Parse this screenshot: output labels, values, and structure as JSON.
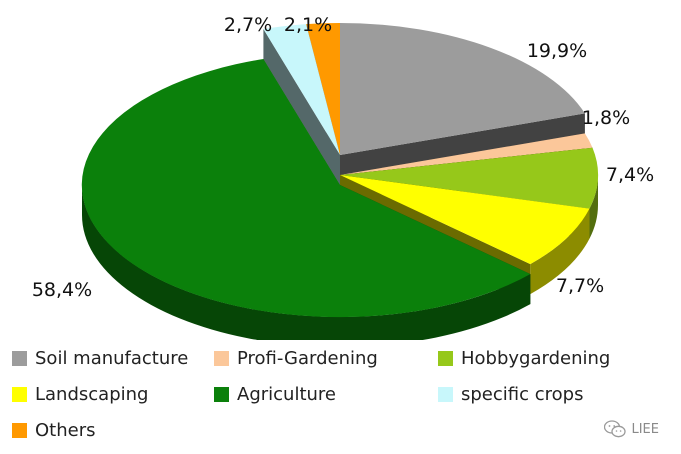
{
  "chart_data": {
    "type": "pie",
    "title": "",
    "series": [
      {
        "name": "Soil manufacture",
        "label": "19,9%",
        "value": 19.9,
        "color": "#9c9c9c"
      },
      {
        "name": "Profi-Gardening",
        "label": "1,8%",
        "value": 1.8,
        "color": "#fbc79a"
      },
      {
        "name": "Hobbygardening",
        "label": "7,4%",
        "value": 7.4,
        "color": "#96c81a"
      },
      {
        "name": "Landscaping",
        "label": "7,7%",
        "value": 7.7,
        "color": "#ffff00"
      },
      {
        "name": "Agriculture",
        "label": "58,4%",
        "value": 58.4,
        "color": "#0b800b"
      },
      {
        "name": "specific crops",
        "label": "2,7%",
        "value": 2.7,
        "color": "#c8f7fb"
      },
      {
        "name": "Others",
        "label": "2,1%",
        "value": 2.1,
        "color": "#ff9900"
      }
    ],
    "legend_position": "bottom",
    "style": "3d-exploded"
  },
  "watermark": {
    "text": "LIEE",
    "icon": "wechat-icon"
  }
}
